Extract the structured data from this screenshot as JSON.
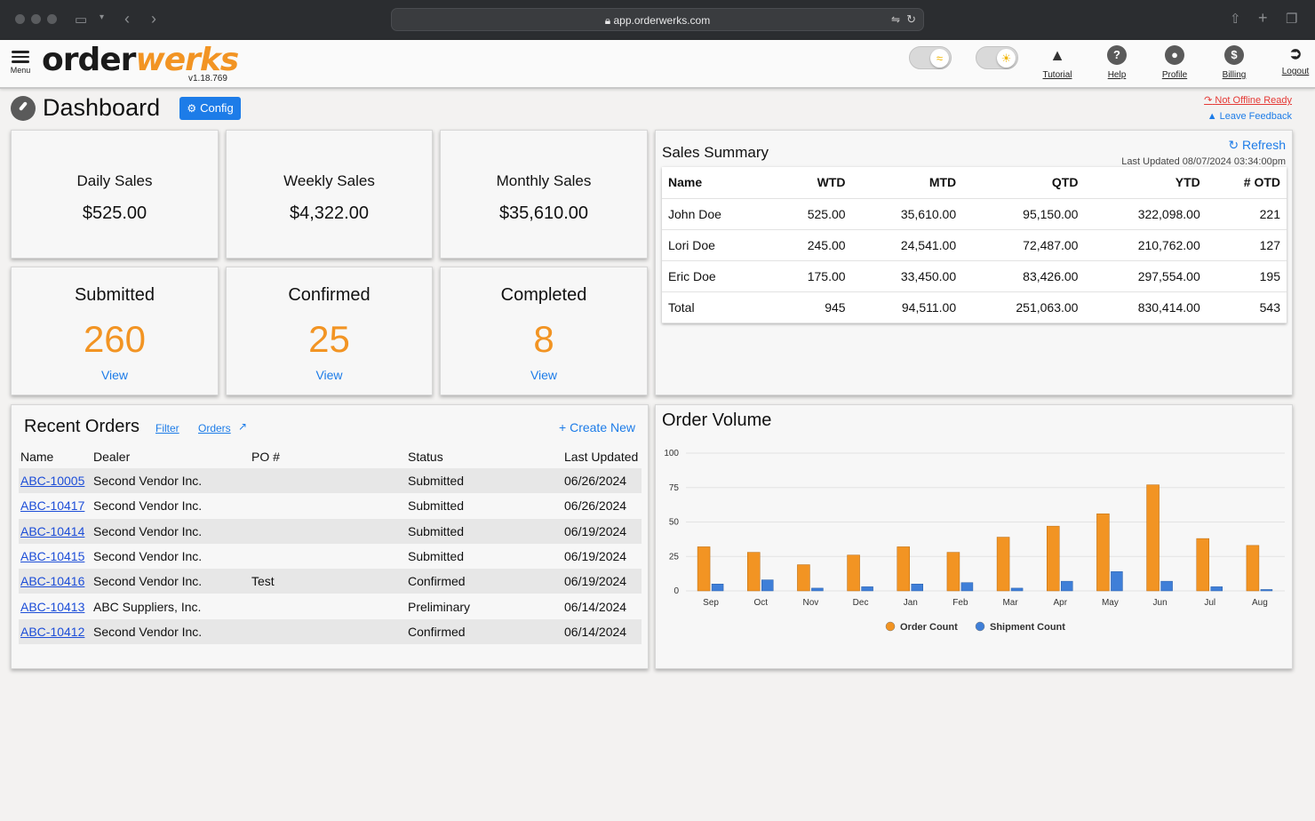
{
  "browser": {
    "url": "app.orderwerks.com"
  },
  "header": {
    "menu_label": "Menu",
    "logo_part1": "order",
    "logo_part2": "werks",
    "version": "v1.18.769",
    "buttons": {
      "tutorial": "Tutorial",
      "help": "Help",
      "profile": "Profile",
      "billing": "Billing",
      "logout": "Logout"
    }
  },
  "page": {
    "title": "Dashboard",
    "config_label": "Config",
    "offline_link": "Not Offline Ready",
    "feedback_link": "Leave Feedback"
  },
  "sales_cards": [
    {
      "label": "Daily Sales",
      "value": "$525.00"
    },
    {
      "label": "Weekly Sales",
      "value": "$4,322.00"
    },
    {
      "label": "Monthly Sales",
      "value": "$35,610.00"
    }
  ],
  "count_cards": [
    {
      "label": "Submitted",
      "value": "260",
      "link": "View"
    },
    {
      "label": "Confirmed",
      "value": "25",
      "link": "View"
    },
    {
      "label": "Completed",
      "value": "8",
      "link": "View"
    }
  ],
  "sales_summary": {
    "title": "Sales Summary",
    "refresh": "Refresh",
    "last_updated": "Last Updated 08/07/2024 03:34:00pm",
    "columns": [
      "Name",
      "WTD",
      "MTD",
      "QTD",
      "YTD",
      "# OTD"
    ],
    "rows": [
      [
        "John Doe",
        "525.00",
        "35,610.00",
        "95,150.00",
        "322,098.00",
        "221"
      ],
      [
        "Lori Doe",
        "245.00",
        "24,541.00",
        "72,487.00",
        "210,762.00",
        "127"
      ],
      [
        "Eric Doe",
        "175.00",
        "33,450.00",
        "83,426.00",
        "297,554.00",
        "195"
      ],
      [
        "Total",
        "945",
        "94,511.00",
        "251,063.00",
        "830,414.00",
        "543"
      ]
    ]
  },
  "recent_orders": {
    "title": "Recent Orders",
    "filter": "Filter",
    "orders_link": "Orders",
    "create_new": "Create New",
    "columns": [
      "Name",
      "Dealer",
      "PO #",
      "Status",
      "Last Updated"
    ],
    "rows": [
      [
        "ABC-10005",
        "Second Vendor Inc.",
        "",
        "Submitted",
        "06/26/2024"
      ],
      [
        "ABC-10417",
        "Second Vendor Inc.",
        "",
        "Submitted",
        "06/26/2024"
      ],
      [
        "ABC-10414",
        "Second Vendor Inc.",
        "",
        "Submitted",
        "06/19/2024"
      ],
      [
        "ABC-10415",
        "Second Vendor Inc.",
        "",
        "Submitted",
        "06/19/2024"
      ],
      [
        "ABC-10416",
        "Second Vendor Inc.",
        "Test",
        "Confirmed",
        "06/19/2024"
      ],
      [
        "ABC-10413",
        "ABC Suppliers, Inc.",
        "",
        "Preliminary",
        "06/14/2024"
      ],
      [
        "ABC-10412",
        "Second Vendor Inc.",
        "",
        "Confirmed",
        "06/14/2024"
      ]
    ]
  },
  "chart_data": {
    "type": "bar",
    "title": "Order Volume",
    "categories": [
      "Sep",
      "Oct",
      "Nov",
      "Dec",
      "Jan",
      "Feb",
      "Mar",
      "Apr",
      "May",
      "Jun",
      "Jul",
      "Aug"
    ],
    "series": [
      {
        "name": "Order Count",
        "color": "#f29423",
        "values": [
          32,
          28,
          19,
          26,
          32,
          28,
          39,
          47,
          56,
          77,
          38,
          33
        ]
      },
      {
        "name": "Shipment Count",
        "color": "#3f7fd8",
        "values": [
          5,
          8,
          2,
          3,
          5,
          6,
          2,
          7,
          14,
          7,
          3,
          1
        ]
      }
    ],
    "ylim": [
      0,
      100
    ],
    "yticks": [
      0,
      25,
      50,
      75,
      100
    ],
    "legend": "bottom"
  }
}
